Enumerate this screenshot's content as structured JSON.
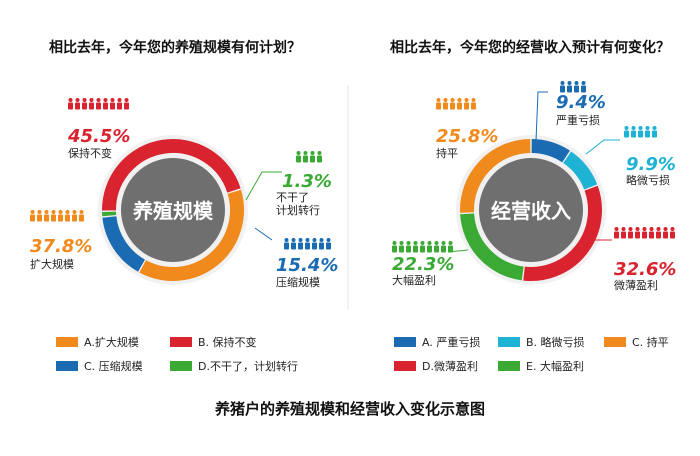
{
  "chart_data": [
    {
      "type": "pie",
      "title": "相比去年，今年您的养殖规模有何计划？",
      "center_label": "养殖规模",
      "categories": [
        "保持不变",
        "扩大规模",
        "压缩规模",
        "不干了，计划转行"
      ],
      "values": [
        45.5,
        37.8,
        15.4,
        1.3
      ],
      "value_labels": [
        "45.5%",
        "37.8%",
        "15.4%",
        "1.3%"
      ],
      "callout_names": [
        "保持不变",
        "扩大规模",
        "压缩规模",
        "不干了\n计划转行"
      ],
      "colors": [
        "#d9242f",
        "#f08a1c",
        "#1b6bb3",
        "#3aaa35"
      ],
      "legend": [
        "A.扩大规模",
        "B. 保持不变",
        "C. 压缩规模",
        "D.不干了，计划转行"
      ],
      "legend_colors": [
        "#f08a1c",
        "#d9242f",
        "#1b6bb3",
        "#3aaa35"
      ]
    },
    {
      "type": "pie",
      "title": "相比去年，今年您的经营收入预计有何变化？",
      "center_label": "经营收入",
      "categories": [
        "严重亏损",
        "略微亏损",
        "微薄盈利",
        "大幅盈利",
        "持平"
      ],
      "values": [
        9.4,
        9.9,
        32.6,
        22.3,
        25.8
      ],
      "value_labels": [
        "9.4%",
        "9.9%",
        "32.6%",
        "22.3%",
        "25.8%"
      ],
      "callout_names": [
        "严重亏损",
        "略微亏损",
        "微薄盈利",
        "大幅盈利",
        "持平"
      ],
      "colors": [
        "#1b6bb3",
        "#1eb2d4",
        "#d9242f",
        "#3aaa35",
        "#f08a1c"
      ],
      "legend": [
        "A. 严重亏损",
        "B. 略微亏损",
        "C. 持平",
        "D.微薄盈利",
        "E. 大幅盈利"
      ],
      "legend_colors": [
        "#1b6bb3",
        "#1eb2d4",
        "#f08a1c",
        "#d9242f",
        "#3aaa35"
      ]
    }
  ],
  "caption": "养猪户的养殖规模和经营收入变化示意图"
}
